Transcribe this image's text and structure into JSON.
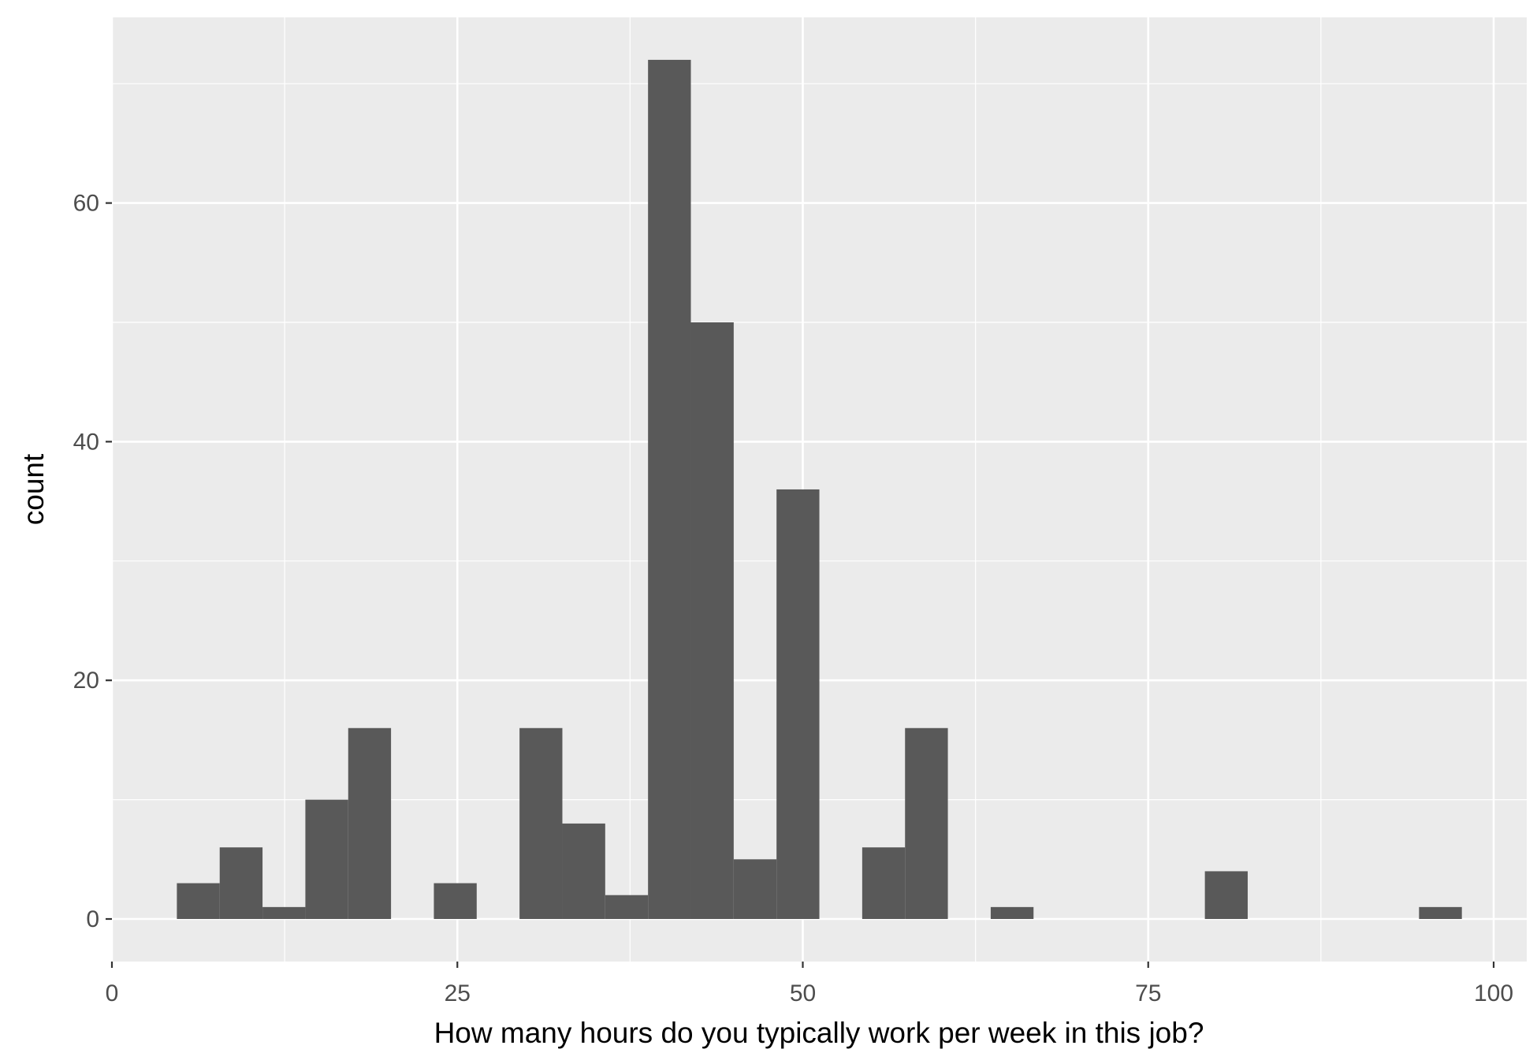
{
  "chart_data": {
    "type": "bar",
    "title": "",
    "xlabel": "How many hours do you typically work per week in this job?",
    "ylabel": "count",
    "xlim": [
      0,
      100
    ],
    "ylim": [
      0,
      72
    ],
    "x_ticks": [
      0,
      25,
      50,
      75,
      100
    ],
    "y_ticks": [
      0,
      20,
      40,
      60
    ],
    "grid": true,
    "bin_width": 3.1,
    "bins": [
      {
        "start": 4.7,
        "end": 7.8,
        "count": 3
      },
      {
        "start": 7.8,
        "end": 10.9,
        "count": 6
      },
      {
        "start": 10.9,
        "end": 14.0,
        "count": 1
      },
      {
        "start": 14.0,
        "end": 17.1,
        "count": 10
      },
      {
        "start": 17.1,
        "end": 20.2,
        "count": 16
      },
      {
        "start": 23.3,
        "end": 26.4,
        "count": 3
      },
      {
        "start": 29.5,
        "end": 32.6,
        "count": 16
      },
      {
        "start": 32.6,
        "end": 35.7,
        "count": 8
      },
      {
        "start": 35.7,
        "end": 38.8,
        "count": 2
      },
      {
        "start": 38.8,
        "end": 41.9,
        "count": 72
      },
      {
        "start": 41.9,
        "end": 45.0,
        "count": 50
      },
      {
        "start": 45.0,
        "end": 48.1,
        "count": 5
      },
      {
        "start": 48.1,
        "end": 51.2,
        "count": 36
      },
      {
        "start": 54.3,
        "end": 57.4,
        "count": 6
      },
      {
        "start": 57.4,
        "end": 60.5,
        "count": 16
      },
      {
        "start": 63.6,
        "end": 66.7,
        "count": 1
      },
      {
        "start": 79.1,
        "end": 82.2,
        "count": 4
      },
      {
        "start": 94.6,
        "end": 97.7,
        "count": 1
      }
    ],
    "colors": {
      "panel_background": "#ebebeb",
      "grid": "#ffffff",
      "bar_fill": "#595959",
      "tick": "#333333"
    }
  }
}
